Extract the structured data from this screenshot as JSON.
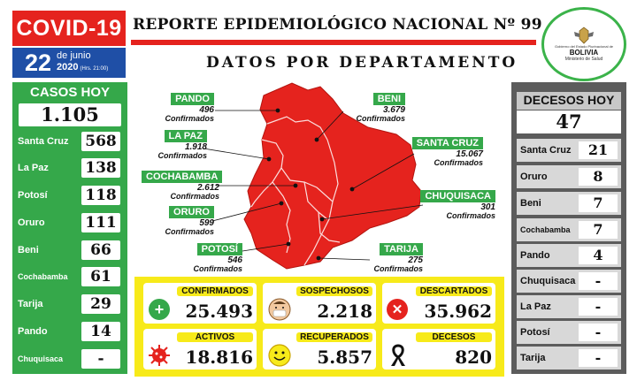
{
  "header": {
    "badge": "COVID-19",
    "title": "REPORTE EPIDEMIOLÓGICO NACIONAL Nº 99",
    "subtitle": "DATOS POR DEPARTAMENTO",
    "date_day": "22",
    "date_month": "de junio",
    "date_year": "2020",
    "date_hours": "(Hrs. 21:00)"
  },
  "logo": {
    "line1": "Gobierno del Estado Plurinacional de",
    "country": "BOLIVIA",
    "ministry": "Ministerio de Salud"
  },
  "cases_today": {
    "title": "CASOS HOY",
    "total": "1.105",
    "rows": [
      {
        "name": "Santa Cruz",
        "value": "568"
      },
      {
        "name": "La Paz",
        "value": "138"
      },
      {
        "name": "Potosí",
        "value": "118"
      },
      {
        "name": "Oruro",
        "value": "111"
      },
      {
        "name": "Beni",
        "value": "66"
      },
      {
        "name": "Cochabamba",
        "value": "61"
      },
      {
        "name": "Tarija",
        "value": "29"
      },
      {
        "name": "Pando",
        "value": "14"
      },
      {
        "name": "Chuquisaca",
        "value": "-"
      }
    ]
  },
  "deaths_today": {
    "title": "DECESOS HOY",
    "total": "47",
    "rows": [
      {
        "name": "Santa Cruz",
        "value": "21"
      },
      {
        "name": "Oruro",
        "value": "8"
      },
      {
        "name": "Beni",
        "value": "7"
      },
      {
        "name": "Cochabamba",
        "value": "7"
      },
      {
        "name": "Pando",
        "value": "4"
      },
      {
        "name": "Chuquisaca",
        "value": "-"
      },
      {
        "name": "La Paz",
        "value": "-"
      },
      {
        "name": "Potosí",
        "value": "-"
      },
      {
        "name": "Tarija",
        "value": "-"
      }
    ]
  },
  "map": {
    "confirmed_word": "Confirmados",
    "departments": [
      {
        "name": "PANDO",
        "value": "496"
      },
      {
        "name": "LA PAZ",
        "value": "1.918"
      },
      {
        "name": "COCHABAMBA",
        "value": "2.612"
      },
      {
        "name": "ORURO",
        "value": "599"
      },
      {
        "name": "POTOSÍ",
        "value": "546"
      },
      {
        "name": "BENI",
        "value": "3.679"
      },
      {
        "name": "SANTA CRUZ",
        "value": "15.067"
      },
      {
        "name": "CHUQUISACA",
        "value": "301"
      },
      {
        "name": "TARIJA",
        "value": "275"
      }
    ]
  },
  "totals": {
    "confirmed_label": "CONFIRMADOS",
    "confirmed": "25.493",
    "suspected_label": "SOSPECHOSOS",
    "suspected": "2.218",
    "discarded_label": "DESCARTADOS",
    "discarded": "35.962",
    "active_label": "ACTIVOS",
    "active": "18.816",
    "recovered_label": "RECUPERADOS",
    "recovered": "5.857",
    "deaths_label": "DECESOS",
    "deaths": "820"
  },
  "colors": {
    "red": "#e5231e",
    "green": "#35a84a",
    "blue": "#1f4fa6",
    "yellow": "#f7ea1a",
    "gray": "#5c5c5c"
  }
}
